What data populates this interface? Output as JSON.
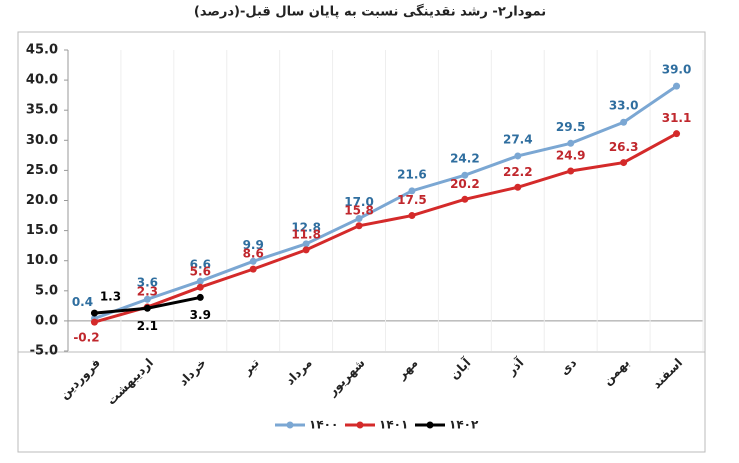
{
  "chart_data": {
    "type": "line",
    "title": "نمودار۲- رشد نقدینگی نسبت به پایان سال قبل-(درصد)",
    "categories": [
      "فروردین",
      "اردیبهشت",
      "خرداد",
      "تیر",
      "مرداد",
      "شهریور",
      "مهر",
      "آبان",
      "آذر",
      "دی",
      "بهمن",
      "اسفند"
    ],
    "series": [
      {
        "name": "۱۴۰۰",
        "color": "#7ba7d3",
        "label_color": "#2f6e9f",
        "values": [
          0.4,
          3.6,
          6.6,
          9.9,
          12.8,
          17.0,
          21.6,
          24.2,
          27.4,
          29.5,
          33.0,
          39.0
        ],
        "value_labels": [
          "0.4",
          "3.6",
          "6.6",
          "9.9",
          "12.8",
          "17.0",
          "21.6",
          "24.2",
          "27.4",
          "29.5",
          "33.0",
          "39.0"
        ]
      },
      {
        "name": "۱۴۰۱",
        "color": "#d42a2a",
        "label_color": "#c0272d",
        "values": [
          -0.2,
          2.3,
          5.6,
          8.6,
          11.8,
          15.8,
          17.5,
          20.2,
          22.2,
          24.9,
          26.3,
          31.1
        ],
        "value_labels": [
          "-0.2",
          "2.3",
          "5.6",
          "8.6",
          "11.8",
          "15.8",
          "17.5",
          "20.2",
          "22.2",
          "24.9",
          "26.3",
          "31.1"
        ]
      },
      {
        "name": "۱۴۰۲",
        "color": "#000000",
        "label_color": "#000000",
        "values": [
          1.3,
          2.1,
          3.9,
          null,
          null,
          null,
          null,
          null,
          null,
          null,
          null,
          null
        ],
        "value_labels": [
          "1.3",
          "2.1",
          "3.9",
          null,
          null,
          null,
          null,
          null,
          null,
          null,
          null,
          null
        ]
      }
    ],
    "ylim": [
      -5,
      45
    ],
    "yticks": [
      {
        "value": -5,
        "label": "-5.0"
      },
      {
        "value": 0,
        "label": "0.0"
      },
      {
        "value": 5,
        "label": "5.0"
      },
      {
        "value": 10,
        "label": "10.0"
      },
      {
        "value": 15,
        "label": "15.0"
      },
      {
        "value": 20,
        "label": "20.0"
      },
      {
        "value": 25,
        "label": "25.0"
      },
      {
        "value": 30,
        "label": "30.0"
      },
      {
        "value": 35,
        "label": "35.0"
      },
      {
        "value": 40,
        "label": "40.0"
      },
      {
        "value": 45,
        "label": "45.0"
      }
    ]
  }
}
